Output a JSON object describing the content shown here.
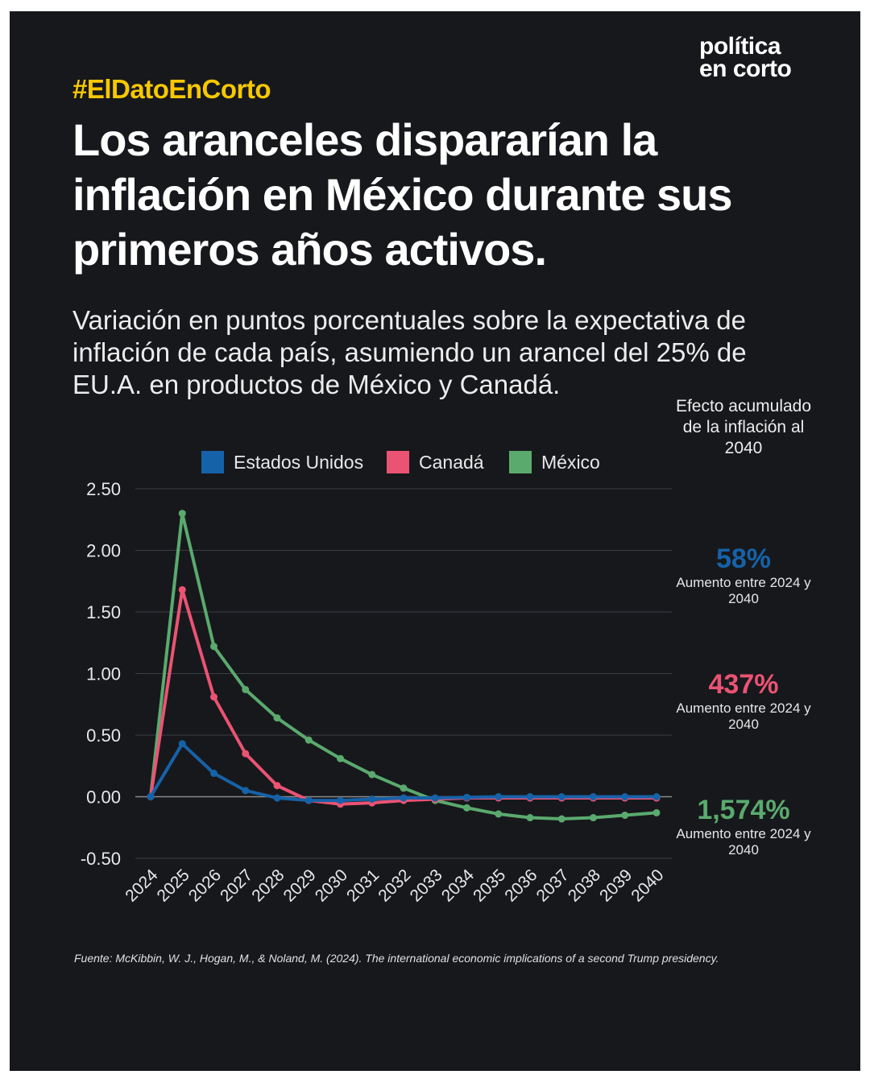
{
  "brand": {
    "line1": "política",
    "line2": "en corto"
  },
  "hashtag": "#ElDatoEnCorto",
  "headline": "Los aranceles dispararían la inflación en México durante sus primeros años activos.",
  "subtitle": "Variación en puntos porcentuales sobre la expectativa de inflación de cada país, asumiendo un arancel del 25% de EU.A. en productos de México y Canadá.",
  "side_panel": {
    "header": "Efecto acumulado de la inflación al 2040",
    "stats": [
      {
        "value": "58%",
        "note": "Aumento entre 2024 y 2040",
        "color": "#1662a8"
      },
      {
        "value": "437%",
        "note": "Aumento entre 2024 y 2040",
        "color": "#eb5373"
      },
      {
        "value": "1,574%",
        "note": "Aumento entre 2024 y 2040",
        "color": "#5aaa6e"
      }
    ]
  },
  "source": "Fuente: McKibbin, W. J., Hogan, M., & Noland, M. (2024). The international economic implications of a second Trump presidency.",
  "chart_data": {
    "type": "line",
    "x": [
      "2024",
      "2025",
      "2026",
      "2027",
      "2028",
      "2029",
      "2030",
      "2031",
      "2032",
      "2033",
      "2034",
      "2035",
      "2036",
      "2037",
      "2038",
      "2039",
      "2040"
    ],
    "yticks": [
      "2.50",
      "2.00",
      "1.50",
      "1.00",
      "0.50",
      "0.00",
      "-0.50"
    ],
    "ylim": [
      -0.5,
      2.5
    ],
    "grid": true,
    "legend": "top",
    "series": [
      {
        "name": "Estados Unidos",
        "color": "#1662a8",
        "values": [
          0,
          0.43,
          0.19,
          0.05,
          -0.01,
          -0.03,
          -0.03,
          -0.02,
          -0.01,
          -0.01,
          -0.005,
          0,
          0,
          0,
          0,
          0,
          0
        ]
      },
      {
        "name": "Canadá",
        "color": "#eb5373",
        "values": [
          0,
          1.68,
          0.81,
          0.35,
          0.09,
          -0.03,
          -0.06,
          -0.05,
          -0.03,
          -0.02,
          -0.01,
          -0.01,
          -0.01,
          -0.01,
          -0.01,
          -0.01,
          -0.01
        ]
      },
      {
        "name": "México",
        "color": "#5aaa6e",
        "values": [
          0,
          2.3,
          1.22,
          0.87,
          0.64,
          0.46,
          0.31,
          0.18,
          0.07,
          -0.03,
          -0.09,
          -0.14,
          -0.17,
          -0.18,
          -0.17,
          -0.15,
          -0.13
        ]
      }
    ]
  }
}
